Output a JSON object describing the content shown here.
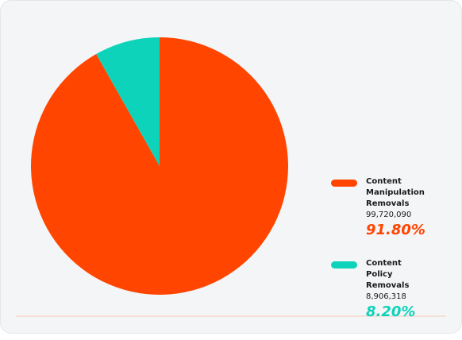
{
  "chart_data": {
    "type": "pie",
    "categories": [
      "Content Manipulation Removals",
      "Content Policy Removals"
    ],
    "values": [
      91.8,
      8.2
    ],
    "value_labels": [
      "91.80%",
      "8.20%"
    ],
    "counts": [
      {
        "value": 99720090,
        "label": "99,720,090"
      },
      {
        "value": 8906318,
        "label": "8,906,318"
      }
    ],
    "colors": [
      "#ff4500",
      "#0dd3bb"
    ]
  }
}
